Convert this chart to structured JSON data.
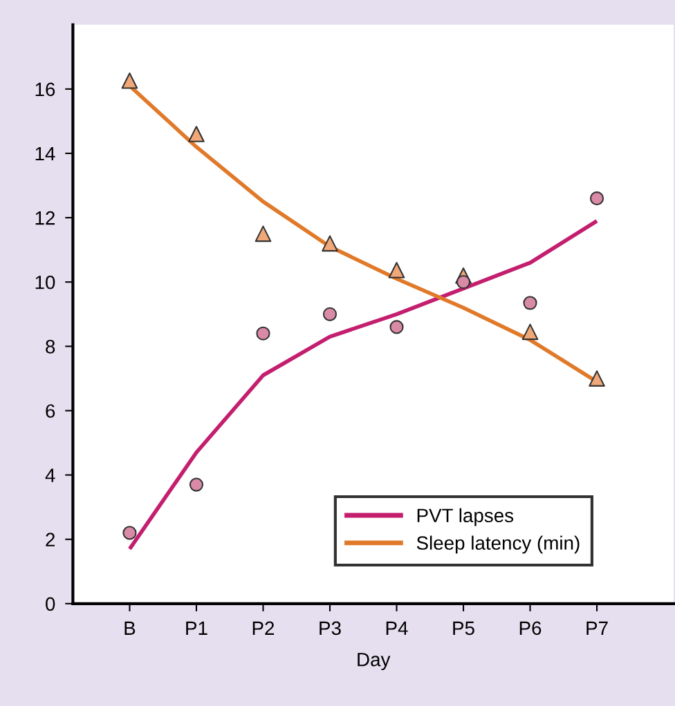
{
  "chart_data": {
    "type": "line",
    "xlabel": "Day",
    "categories": [
      "B",
      "P1",
      "P2",
      "P3",
      "P4",
      "P5",
      "P6",
      "P7"
    ],
    "ylim": [
      0,
      18
    ],
    "yticks": [
      0,
      2,
      4,
      6,
      8,
      10,
      12,
      14,
      16
    ],
    "grid": false,
    "legend": "bottom right",
    "series": [
      {
        "type": "scatter",
        "marker": "circle",
        "color": "#d98aa6",
        "values": [
          2.2,
          3.7,
          8.4,
          9.0,
          8.6,
          10.0,
          9.35,
          12.6
        ]
      },
      {
        "type": "scatter",
        "marker": "triangle",
        "color": "#f0a878",
        "values": [
          16.26,
          14.6,
          11.5,
          11.2,
          10.37,
          10.2,
          8.45,
          7.0
        ]
      },
      {
        "name": "PVT lapses",
        "color": "#c41e6e",
        "values": [
          1.7,
          4.7,
          7.1,
          8.3,
          9.0,
          9.8,
          10.6,
          11.9
        ]
      },
      {
        "name": "Sleep latency (min)",
        "color": "#e07a2a",
        "values": [
          16.1,
          14.2,
          12.5,
          11.1,
          10.1,
          9.2,
          8.2,
          6.9
        ]
      }
    ]
  }
}
